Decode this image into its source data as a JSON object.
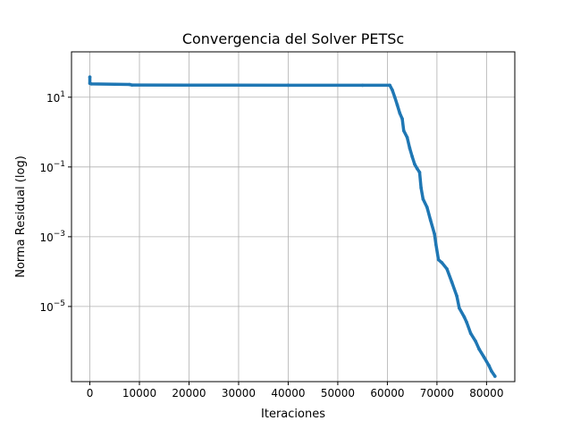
{
  "chart_data": {
    "type": "line",
    "title": "Convergencia del Solver PETSc",
    "xlabel": "Iteraciones",
    "ylabel": "Norma Residual (log)",
    "yscale": "log",
    "xlim": [
      -3700,
      85700
    ],
    "ylim": [
      7e-08,
      200
    ],
    "grid": true,
    "xticks": [
      0,
      10000,
      20000,
      30000,
      40000,
      50000,
      60000,
      70000,
      80000
    ],
    "xtick_labels": [
      "0",
      "10000",
      "20000",
      "30000",
      "40000",
      "50000",
      "60000",
      "70000",
      "80000"
    ],
    "yticks": [
      10,
      0.1,
      0.001,
      1e-05
    ],
    "ytick_labels": [
      {
        "base": "10",
        "exp": "1"
      },
      {
        "base": "10",
        "exp": "−1"
      },
      {
        "base": "10",
        "exp": "−3"
      },
      {
        "base": "10",
        "exp": "−5"
      }
    ],
    "series": [
      {
        "color": "#1f77b4",
        "points": [
          [
            0,
            38
          ],
          [
            0,
            25
          ],
          [
            300,
            24
          ],
          [
            5000,
            23.5
          ],
          [
            8000,
            23.2
          ],
          [
            8500,
            22.3
          ],
          [
            20000,
            22.2
          ],
          [
            40000,
            22.1
          ],
          [
            55000,
            22.0
          ],
          [
            60500,
            22.0
          ],
          [
            61000,
            16
          ],
          [
            61500,
            10
          ],
          [
            62000,
            6
          ],
          [
            62500,
            3.5
          ],
          [
            63000,
            2.4
          ],
          [
            63300,
            1.1
          ],
          [
            64000,
            0.7
          ],
          [
            64500,
            0.35
          ],
          [
            65000,
            0.2
          ],
          [
            65500,
            0.12
          ],
          [
            66000,
            0.09
          ],
          [
            66500,
            0.07
          ],
          [
            66800,
            0.025
          ],
          [
            67200,
            0.012
          ],
          [
            68000,
            0.007
          ],
          [
            68700,
            0.003
          ],
          [
            69500,
            0.0012
          ],
          [
            69800,
            0.0006
          ],
          [
            70300,
            0.00022
          ],
          [
            71000,
            0.00018
          ],
          [
            72000,
            0.00012
          ],
          [
            73000,
            5e-05
          ],
          [
            74000,
            2e-05
          ],
          [
            74500,
            9e-06
          ],
          [
            75500,
            5e-06
          ],
          [
            76000,
            3.5e-06
          ],
          [
            76800,
            1.7e-06
          ],
          [
            77800,
            1e-06
          ],
          [
            78500,
            6e-07
          ],
          [
            79500,
            3.5e-07
          ],
          [
            80500,
            2e-07
          ],
          [
            81000,
            1.4e-07
          ],
          [
            81700,
            1e-07
          ]
        ]
      }
    ]
  }
}
